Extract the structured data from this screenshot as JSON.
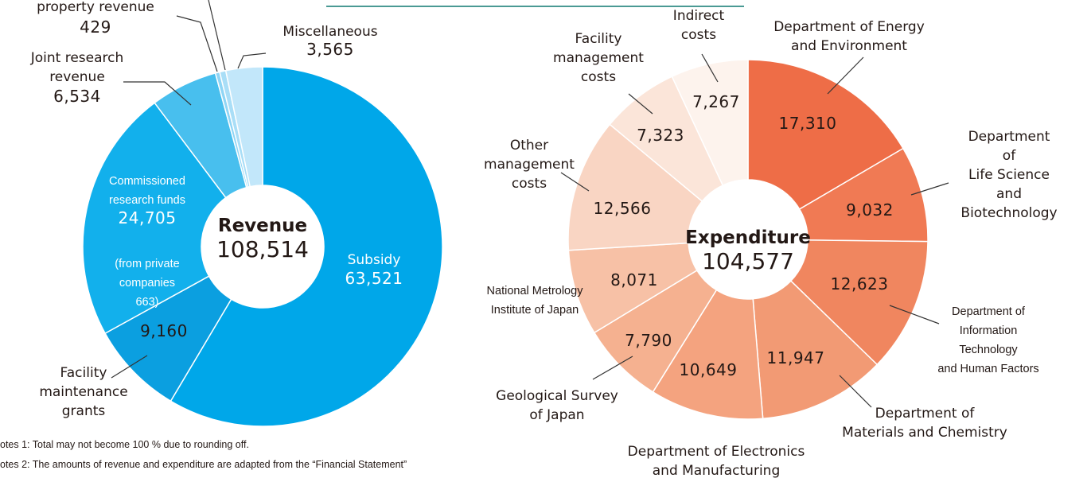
{
  "chart_data": [
    {
      "type": "pie",
      "center_label": "Revenue",
      "total_label": "108,514",
      "categories": [
        "Subsidy",
        "Facility\nmaintenance\ngrants",
        "Commissioned\nresearch funds",
        "Joint research\nrevenue",
        "property revenue",
        null,
        "Miscellaneous"
      ],
      "values": [
        63521,
        9160,
        24705,
        6534,
        429,
        600,
        3565
      ],
      "value_labels": [
        "63,521",
        "9,160",
        "24,705",
        "6,534",
        "429",
        null,
        "3,565"
      ],
      "colors": [
        "#00a7e9",
        "#0b9fe0",
        "#12b0ec",
        "#48bfee",
        "#8fd5f5",
        "#a9def7",
        "#c2e7fa"
      ],
      "annotations": [
        "(from private\ncompanies\n663)"
      ]
    },
    {
      "type": "pie",
      "center_label": "Expenditure",
      "total_label": "104,577",
      "categories": [
        "Department of Energy\nand Environment",
        "Department of\nLife Science and\nBiotechnology",
        "Department of\nInformation Technology\nand Human Factors",
        "Department of\nMaterials and Chemistry",
        "Department of Electronics\nand Manufacturing",
        "Geological Survey\nof Japan",
        "National Metrology\nInstitute of Japan",
        "Other\nmanagement\ncosts",
        "Facility\nmanagement\ncosts",
        "Indirect\ncosts"
      ],
      "values": [
        17310,
        9032,
        12623,
        11947,
        10649,
        7790,
        8071,
        12566,
        7323,
        7267
      ],
      "value_labels": [
        "17,310",
        "9,032",
        "12,623",
        "11,947",
        "10,649",
        "7,790",
        "8,071",
        "12,566",
        "7,323",
        "7,267"
      ],
      "colors": [
        "#ee6d47",
        "#f07a54",
        "#f0865f",
        "#f29a74",
        "#f4a37f",
        "#f5b190",
        "#f7c1a6",
        "#f9d5c3",
        "#fbe5d9",
        "#fdf3ed"
      ]
    }
  ],
  "notes": [
    "otes 1: Total may not become 100 % due to rounding off.",
    "otes 2: The amounts of revenue and expenditure are adapted from the “Financial Statement”"
  ]
}
